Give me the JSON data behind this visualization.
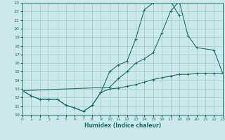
{
  "xlabel": "Humidex (Indice chaleur)",
  "background_color": "#cce8e8",
  "grid_color": "#99cccc",
  "line_color": "#1a7070",
  "xmin": 0,
  "xmax": 23,
  "ymin": 10,
  "ymax": 23,
  "line1_x": [
    0,
    1,
    2,
    3,
    4,
    5,
    6,
    7,
    8,
    9,
    10,
    11,
    12,
    13,
    14,
    15,
    16,
    17,
    18,
    19,
    20,
    21,
    22,
    23
  ],
  "line1_y": [
    12.8,
    12.2,
    11.8,
    11.8,
    11.8,
    11.1,
    10.8,
    10.4,
    11.1,
    12.6,
    13.0,
    13.1,
    13.3,
    13.5,
    13.8,
    14.1,
    14.3,
    14.5,
    14.7,
    14.7,
    14.8,
    14.8,
    14.8,
    14.8
  ],
  "line2_x": [
    0,
    1,
    2,
    3,
    4,
    5,
    6,
    7,
    8,
    9,
    10,
    11,
    12,
    13,
    14,
    15,
    16,
    17,
    18
  ],
  "line2_y": [
    12.8,
    12.2,
    11.8,
    11.8,
    11.8,
    11.1,
    10.8,
    10.4,
    11.1,
    12.6,
    15.0,
    15.8,
    16.2,
    18.8,
    22.2,
    23.0,
    23.2,
    23.2,
    21.5
  ],
  "line3_x": [
    0,
    10,
    11,
    12,
    13,
    14,
    15,
    16,
    17,
    18,
    19,
    20,
    22,
    23
  ],
  "line3_y": [
    12.8,
    13.2,
    14.2,
    15.0,
    16.0,
    16.5,
    17.2,
    19.5,
    22.0,
    23.2,
    19.2,
    17.8,
    17.5,
    14.8
  ]
}
